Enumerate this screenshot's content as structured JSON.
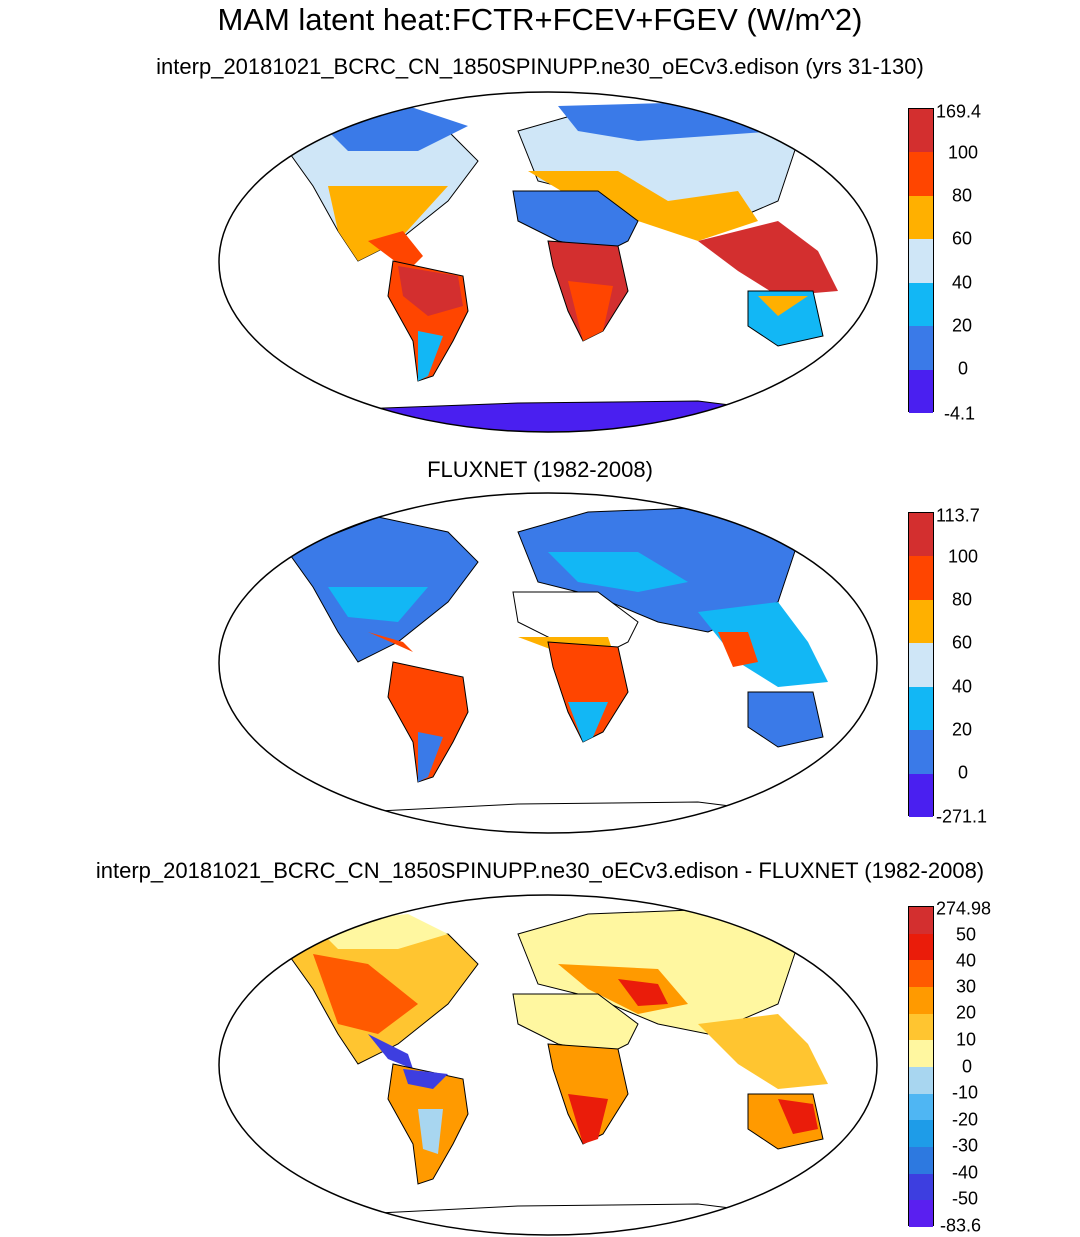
{
  "figure": {
    "title": "MAM latent heat:FCTR+FCEV+FGEV (W/m^2)"
  },
  "panels": [
    {
      "id": "model",
      "title": "interp_20181021_BCRC_CN_1850SPINUPP.ne30_oECv3.edison (yrs 31-130)",
      "colorbar_labels": [
        "169.4",
        "100",
        "80",
        "60",
        "40",
        "20",
        "0",
        "-4.1"
      ],
      "colorbar_colors": [
        "#d32f2f",
        "#ff4500",
        "#ffb000",
        "#cfe6f7",
        "#12b7f5",
        "#3a7ae8",
        "#4a1ff0"
      ]
    },
    {
      "id": "obs",
      "title": "FLUXNET (1982-2008)",
      "colorbar_labels": [
        "113.7",
        "100",
        "80",
        "60",
        "40",
        "20",
        "0",
        "-271.1"
      ],
      "colorbar_colors": [
        "#d32f2f",
        "#ff4500",
        "#ffb000",
        "#cfe6f7",
        "#12b7f5",
        "#3a7ae8",
        "#4a1ff0"
      ]
    },
    {
      "id": "diff",
      "title": "interp_20181021_BCRC_CN_1850SPINUPP.ne30_oECv3.edison - FLUXNET (1982-2008)",
      "colorbar_labels": [
        "274.98",
        "50",
        "40",
        "30",
        "20",
        "10",
        "0",
        "-10",
        "-20",
        "-30",
        "-40",
        "-50",
        "-83.6"
      ],
      "colorbar_colors": [
        "#d32f2f",
        "#ea1c0a",
        "#ff5a00",
        "#ff9a00",
        "#ffc530",
        "#fff7a0",
        "#a8d6f0",
        "#4fb6f3",
        "#1e9ce8",
        "#2d79e0",
        "#3d3ee0",
        "#5a1ff0"
      ]
    }
  ]
}
